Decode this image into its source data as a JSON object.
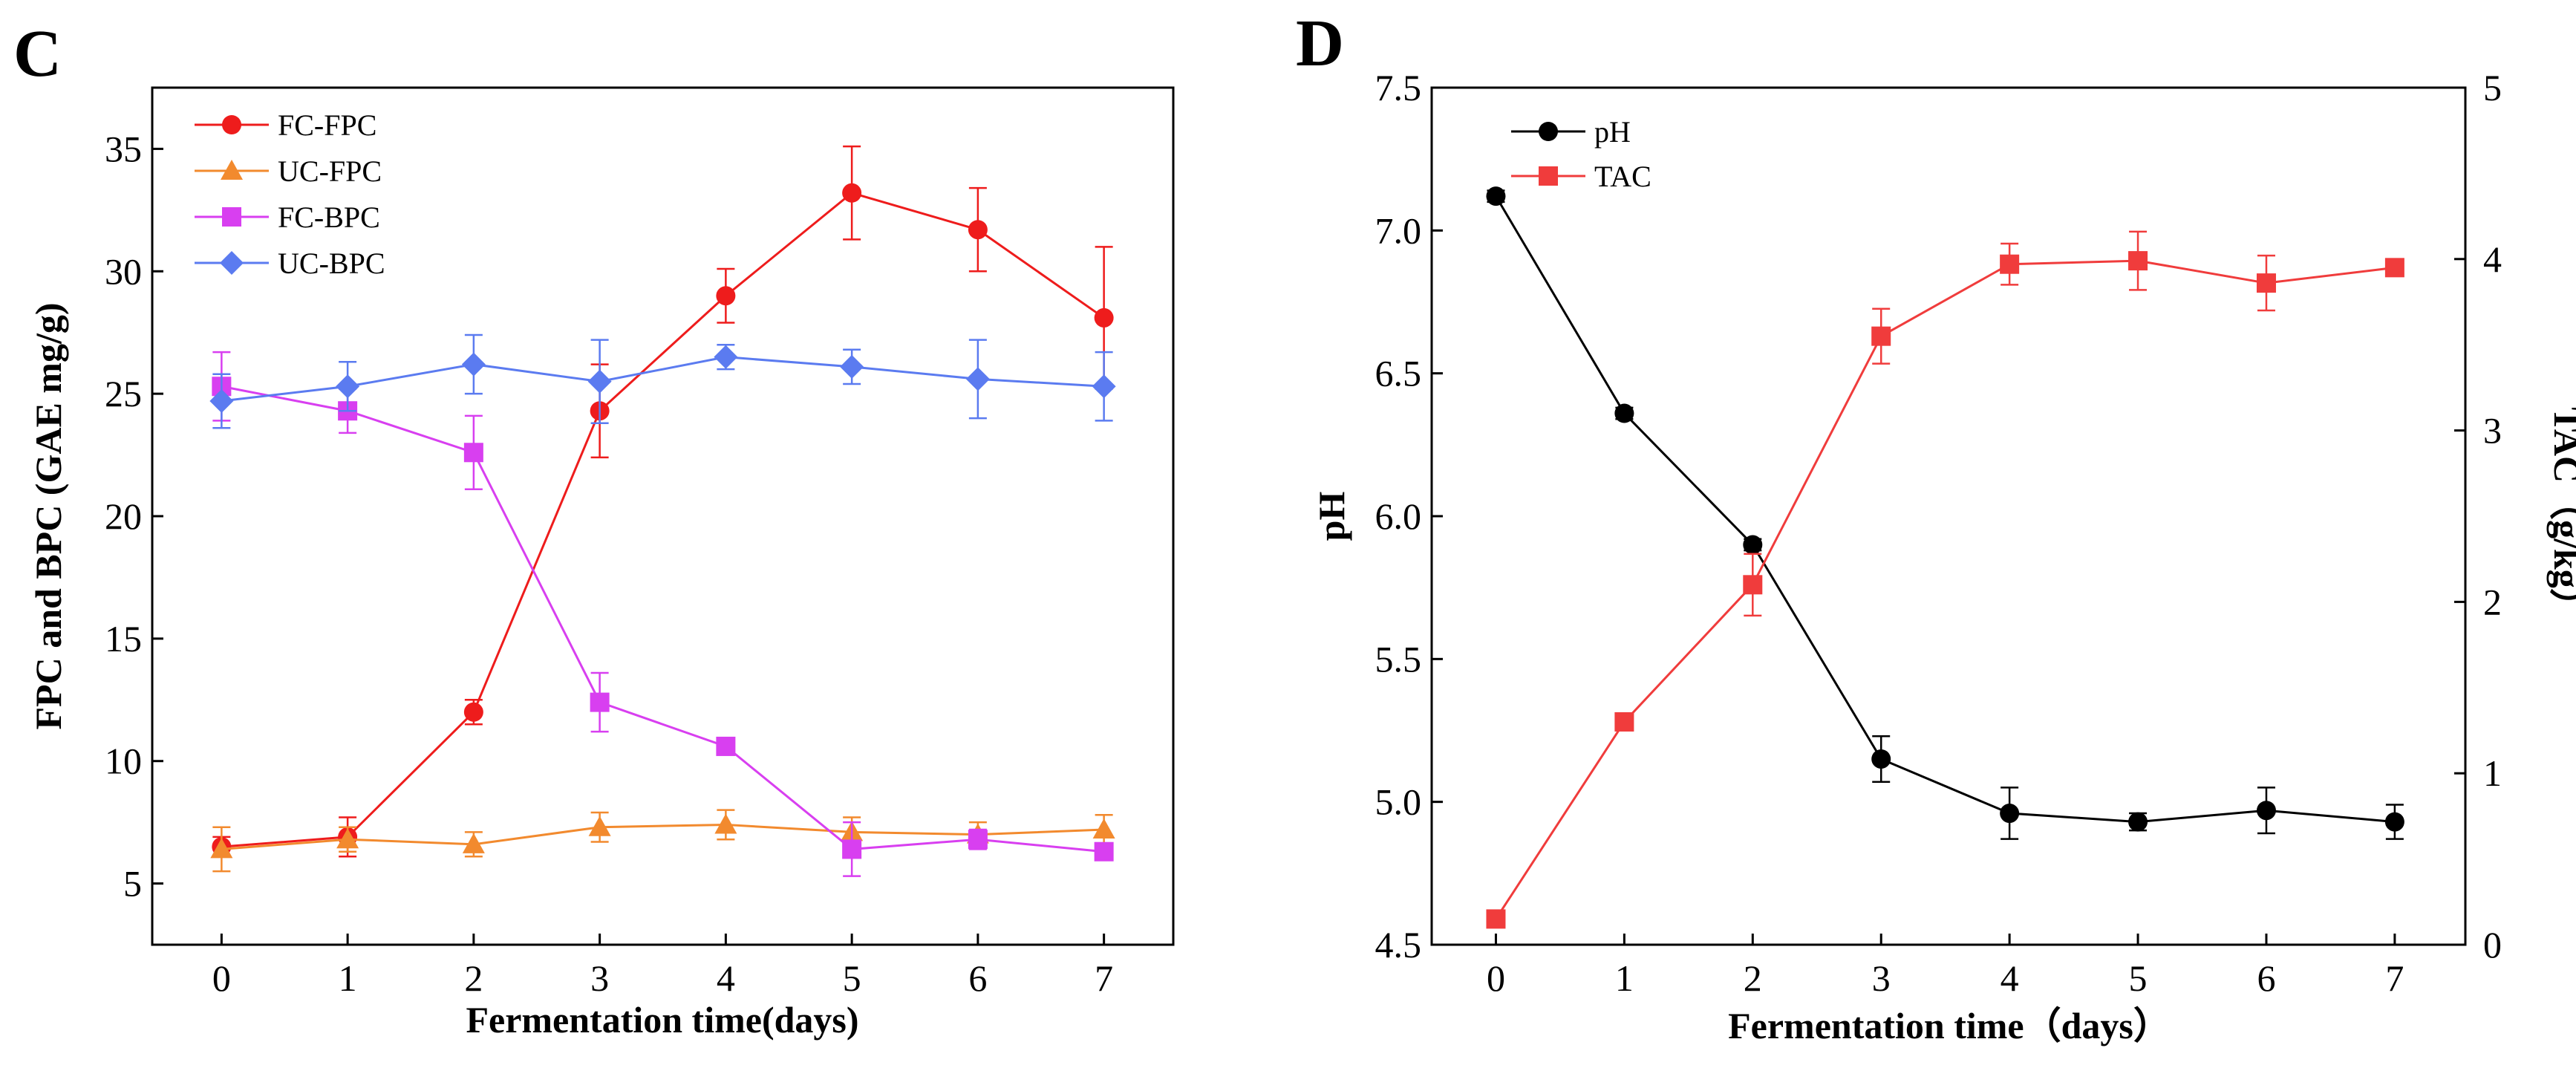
{
  "chart_data": [
    {
      "panel": "C",
      "type": "line",
      "xlabel": "Fermentation time(days)",
      "ylabel": "FPC and BPC (GAE mg/g)",
      "xlim": [
        -0.55,
        7.55
      ],
      "ylim": [
        2.5,
        37.5
      ],
      "x_ticks": [
        "0",
        "1",
        "2",
        "3",
        "4",
        "5",
        "6",
        "7"
      ],
      "y_ticks": [
        "5",
        "10",
        "15",
        "20",
        "25",
        "30",
        "35"
      ],
      "legend_position": "top-left",
      "x": [
        0,
        1,
        2,
        3,
        4,
        5,
        6,
        7
      ],
      "series": [
        {
          "name": "FC-FPC",
          "color": "#ee1c1c",
          "marker": "circle",
          "values": [
            6.5,
            6.9,
            12.0,
            24.3,
            29.0,
            33.2,
            31.7,
            28.1
          ],
          "errors": [
            0.4,
            0.8,
            0.5,
            1.9,
            1.1,
            1.9,
            1.7,
            2.9
          ]
        },
        {
          "name": "UC-FPC",
          "color": "#f28a2e",
          "marker": "triangle",
          "values": [
            6.4,
            6.8,
            6.6,
            7.3,
            7.4,
            7.1,
            7.0,
            7.2
          ],
          "errors": [
            0.9,
            0.5,
            0.5,
            0.6,
            0.6,
            0.6,
            0.5,
            0.6
          ]
        },
        {
          "name": "FC-BPC",
          "color": "#d83ff0",
          "marker": "square",
          "values": [
            25.3,
            24.3,
            22.6,
            12.4,
            10.6,
            6.4,
            6.8,
            6.3
          ],
          "errors": [
            1.4,
            0.9,
            1.5,
            1.2,
            0.3,
            1.1,
            0.4,
            0.3
          ]
        },
        {
          "name": "UC-BPC",
          "color": "#5b7bf0",
          "marker": "diamond",
          "values": [
            24.7,
            25.3,
            26.2,
            25.5,
            26.5,
            26.1,
            25.6,
            25.3
          ],
          "errors": [
            1.1,
            1.0,
            1.2,
            1.7,
            0.5,
            0.7,
            1.6,
            1.4
          ]
        }
      ]
    },
    {
      "panel": "D",
      "type": "line",
      "xlabel": "Fermentation time（days）",
      "ylabel": "pH",
      "y2label": "TAC（g/kg）",
      "xlim": [
        -0.5,
        7.55
      ],
      "ylim": [
        4.5,
        7.5
      ],
      "y2lim": [
        0,
        5
      ],
      "x_ticks": [
        "0",
        "1",
        "2",
        "3",
        "4",
        "5",
        "6",
        "7"
      ],
      "y_ticks": [
        "4.5",
        "5.0",
        "5.5",
        "6.0",
        "6.5",
        "7.0",
        "7.5"
      ],
      "y2_ticks": [
        "0",
        "1",
        "2",
        "3",
        "4",
        "5"
      ],
      "legend_position": "top-left",
      "x": [
        0,
        1,
        2,
        3,
        4,
        5,
        6,
        7
      ],
      "series": [
        {
          "name": "pH",
          "axis": "left",
          "color": "#000000",
          "marker": "circle",
          "values": [
            7.12,
            6.36,
            5.9,
            5.15,
            4.96,
            4.93,
            4.97,
            4.93
          ],
          "errors": [
            0.02,
            0.02,
            0.02,
            0.08,
            0.09,
            0.03,
            0.08,
            0.06
          ]
        },
        {
          "name": "TAC",
          "axis": "right",
          "color": "#f03c3c",
          "marker": "square",
          "values": [
            0.15,
            1.3,
            2.1,
            3.55,
            3.97,
            3.99,
            3.86,
            3.95
          ],
          "errors": [
            0.02,
            0.04,
            0.18,
            0.16,
            0.12,
            0.17,
            0.16,
            0.04
          ]
        }
      ]
    }
  ]
}
